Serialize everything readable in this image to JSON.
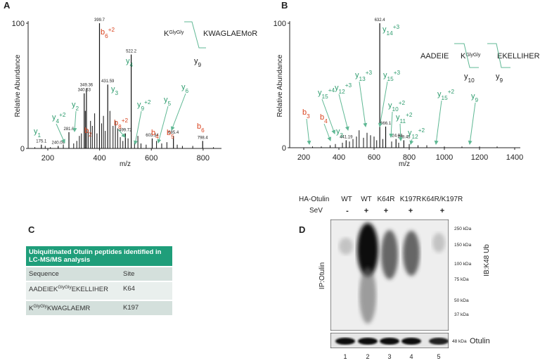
{
  "chart_data": [
    {
      "type": "spectrum",
      "panel": "A",
      "ylabel": "Relative Abundance",
      "xlabel": "m/z",
      "xlim": [
        124,
        871
      ],
      "xticks": [
        200,
        400,
        600,
        800
      ],
      "ylim": [
        0,
        100
      ],
      "yticks": [
        0,
        100
      ],
      "x": [
        175.1,
        240.09,
        281.6,
        340.63,
        349.36,
        399.7,
        431.59,
        499.72,
        522.2,
        603.34,
        685.4,
        798.4
      ],
      "values": [
        3,
        2,
        13,
        44,
        48,
        100,
        51,
        12,
        75,
        8,
        10,
        6
      ],
      "minor_x": [
        150,
        190,
        210,
        260,
        300,
        312,
        322,
        330,
        345,
        356,
        365,
        372,
        381,
        390,
        408,
        415,
        422,
        440,
        452,
        461,
        470,
        480,
        490,
        510,
        535,
        548,
        560,
        580,
        620,
        640,
        660,
        700,
        720,
        760,
        840
      ],
      "minor_values": [
        1,
        2,
        1,
        3,
        4,
        6,
        10,
        12,
        30,
        15,
        22,
        18,
        28,
        12,
        20,
        26,
        14,
        30,
        18,
        22,
        16,
        9,
        6,
        8,
        5,
        10,
        4,
        3,
        6,
        4,
        5,
        3,
        2,
        2,
        1
      ],
      "ions": [
        {
          "ion": "y",
          "number": "1",
          "color": "#2e9c6e"
        },
        {
          "ion": "y",
          "number": "4",
          "charge": "+2",
          "color": "#2e9c6e"
        },
        {
          "ion": "y",
          "number": "2",
          "color": "#2e9c6e"
        },
        {
          "ion": "b",
          "number": "2",
          "color": "#d9431e"
        },
        {
          "ion": "y",
          "number": "3",
          "color": "#2e9c6e"
        },
        {
          "ion": "b",
          "number": "6",
          "charge": "+2",
          "color": "#d9431e"
        },
        {
          "ion": "y",
          "number": "4",
          "color": "#2e9c6e"
        },
        {
          "ion": "b",
          "number": "8",
          "charge": "+2",
          "color": "#d9431e"
        },
        {
          "ion": "y",
          "number": "9",
          "charge": "+2",
          "color": "#2e9c6e"
        },
        {
          "ion": "b",
          "number": "4",
          "color": "#d9431e"
        },
        {
          "ion": "y",
          "number": "5",
          "color": "#2e9c6e"
        },
        {
          "ion": "b",
          "number": "5",
          "color": "#d9431e"
        },
        {
          "ion": "y",
          "number": "6",
          "color": "#2e9c6e"
        },
        {
          "ion": "b",
          "number": "6",
          "color": "#d9431e"
        }
      ],
      "peptide": [
        "K",
        "GlyGly",
        "KWAGLAEMoR"
      ],
      "bracket_ions": [
        {
          "ion": "y",
          "number": "9"
        }
      ]
    },
    {
      "type": "spectrum",
      "panel": "B",
      "ylabel": "Relative Abundance",
      "xlabel": "m/z",
      "xlim": [
        120,
        1432
      ],
      "xticks": [
        200,
        400,
        600,
        800,
        1000,
        1200,
        1400
      ],
      "ylim": [
        0,
        100
      ],
      "yticks": [
        0,
        100
      ],
      "x": [
        441.19,
        632.4,
        666.1,
        724.94,
        769.45
      ],
      "values": [
        6,
        100,
        17,
        7,
        6
      ],
      "minor_x": [
        250,
        300,
        350,
        380,
        420,
        460,
        480,
        500,
        515,
        540,
        560,
        580,
        600,
        615,
        650,
        700,
        740,
        800,
        850,
        900,
        1000,
        1100,
        1200,
        1300
      ],
      "minor_values": [
        1,
        1,
        2,
        3,
        4,
        5,
        7,
        9,
        14,
        8,
        12,
        10,
        9,
        6,
        7,
        5,
        4,
        3,
        2,
        2,
        1,
        1,
        1,
        1
      ],
      "ions": [
        {
          "ion": "b",
          "number": "3",
          "color": "#d9431e"
        },
        {
          "ion": "b",
          "number": "4",
          "color": "#d9431e"
        },
        {
          "ion": "y",
          "number": "3",
          "color": "#2e9c6e"
        },
        {
          "ion": "y",
          "number": "15",
          "charge": "+4",
          "color": "#2e9c6e"
        },
        {
          "ion": "y",
          "number": "12",
          "charge": "+3",
          "color": "#2e9c6e"
        },
        {
          "ion": "y",
          "number": "13",
          "charge": "+3",
          "color": "#2e9c6e"
        },
        {
          "ion": "y",
          "number": "14",
          "charge": "+3",
          "color": "#2e9c6e"
        },
        {
          "ion": "y",
          "number": "15",
          "charge": "+3",
          "color": "#2e9c6e"
        },
        {
          "ion": "y",
          "number": "10",
          "charge": "+2",
          "color": "#2e9c6e"
        },
        {
          "ion": "y",
          "number": "11",
          "charge": "+2",
          "color": "#2e9c6e"
        },
        {
          "ion": "y",
          "number": "12",
          "charge": "+2",
          "color": "#2e9c6e"
        },
        {
          "ion": "y",
          "number": "15",
          "charge": "+2",
          "color": "#2e9c6e"
        },
        {
          "ion": "y",
          "number": "9",
          "color": "#2e9c6e"
        }
      ],
      "peptide": [
        "AADEIE",
        "K",
        "GlyGly",
        "EKELLIHER"
      ],
      "bracket_ions": [
        {
          "ion": "y",
          "number": "10"
        },
        {
          "ion": "y",
          "number": "9"
        }
      ]
    }
  ],
  "table": {
    "panel": "C",
    "title": "Ubiquitinated Otulin peptides identified in LC-MS/MS analysis",
    "header": [
      "Sequence",
      "Site"
    ],
    "rows": [
      {
        "sequence": [
          "AADEIEK",
          "GlyGly",
          "EKELLIHER"
        ],
        "site": "K64"
      },
      {
        "sequence": [
          "K",
          "GlyGly",
          "KWAGLAEMR"
        ],
        "site": "K197"
      }
    ]
  },
  "blot": {
    "panel": "D",
    "row_labels": [
      "HA-Otulin",
      "SeV"
    ],
    "lanes": [
      "WT",
      "WT",
      "K64R",
      "K197R",
      "K64R/K197R"
    ],
    "sev": [
      "-",
      "+",
      "+",
      "+",
      "+"
    ],
    "markers": [
      "250 kDa",
      "150 kDa",
      "100 kDa",
      "75 kDa",
      "50 kDa",
      "37 kDa"
    ],
    "lower_marker": "48 kDa",
    "ib_label": "IB:K48 Ub",
    "ip_label": "IP:Otulin",
    "lower_label": "Otulin",
    "lane_numbers": [
      1,
      2,
      3,
      4,
      5
    ]
  }
}
